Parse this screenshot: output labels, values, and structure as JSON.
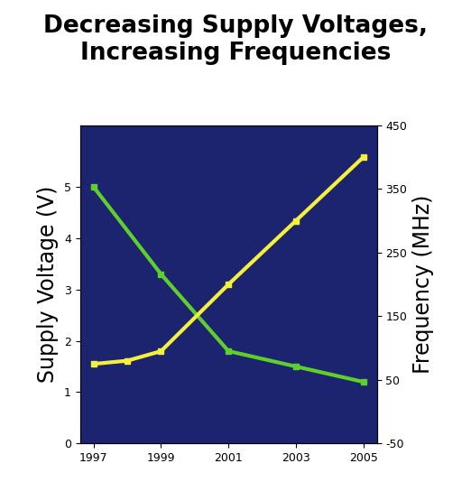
{
  "chart_data": {
    "type": "line",
    "title": "Decreasing Supply Voltages,\nIncreasing Frequencies",
    "y_label": "Supply Voltage (V)",
    "y2_label": "Frequency (MHz)",
    "xlim": [
      1996.6,
      2005.4
    ],
    "xticks": [
      1997,
      1999,
      2001,
      2003,
      2005
    ],
    "ylim": [
      0,
      6.2
    ],
    "yticks": [
      0,
      1,
      2,
      3,
      4,
      5
    ],
    "y2lim": [
      -50,
      450
    ],
    "y2ticks": [
      -50,
      50,
      150,
      250,
      350,
      450
    ],
    "series": [
      {
        "name": "Supply Voltage",
        "color": "#5fd02a",
        "marker": "square",
        "axis": "y",
        "x": [
          1997,
          1999,
          2001,
          2003,
          2005
        ],
        "values": [
          5.0,
          3.3,
          1.8,
          1.5,
          1.2
        ]
      },
      {
        "name": "Frequency",
        "color": "#f5f03a",
        "marker": "square",
        "axis": "y2",
        "x": [
          1997,
          1998,
          1999,
          2001,
          2003,
          2005
        ],
        "values": [
          75,
          80,
          95,
          200,
          300,
          400
        ]
      }
    ]
  }
}
